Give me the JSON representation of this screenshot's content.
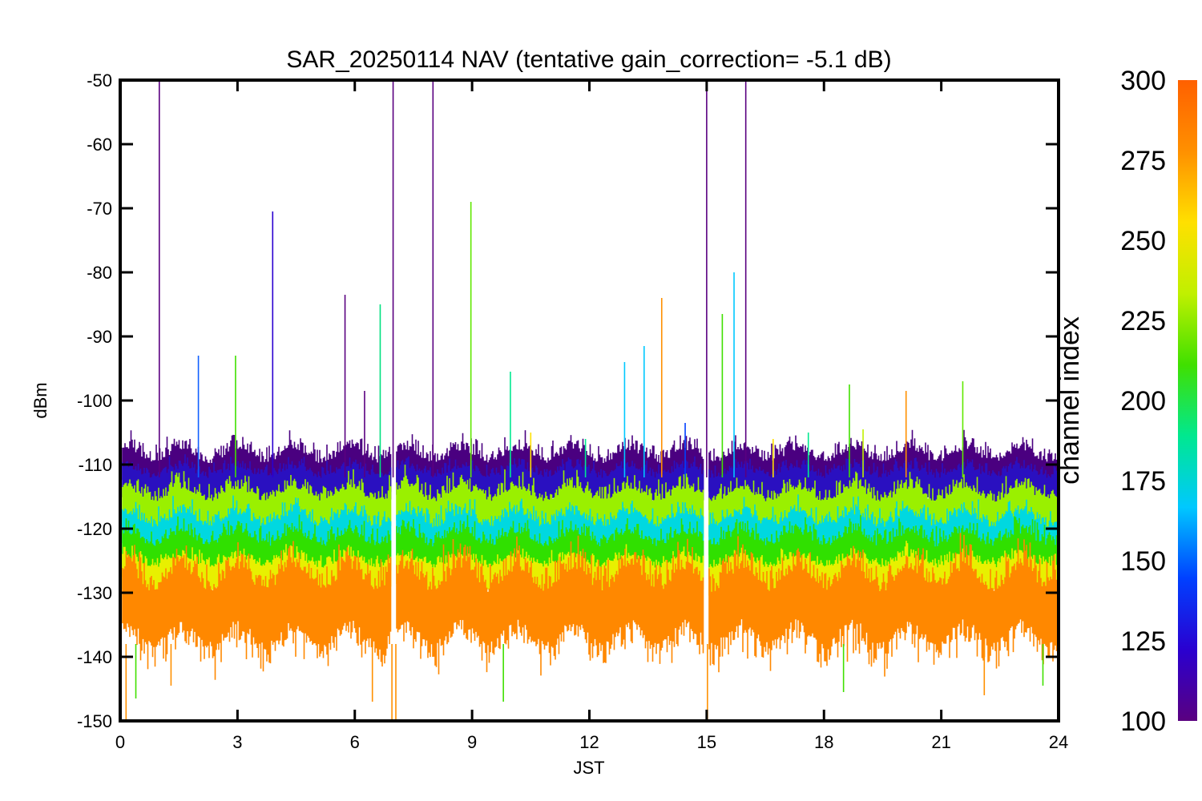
{
  "chart_data": {
    "type": "line",
    "title": "SAR_20250114 NAV (tentative gain_correction= -5.1 dB)",
    "xlabel": "JST",
    "ylabel": "dBm",
    "xlim": [
      0,
      24
    ],
    "ylim": [
      -150,
      -50
    ],
    "x_ticks": [
      "0",
      "3",
      "6",
      "9",
      "12",
      "15",
      "18",
      "21",
      "24"
    ],
    "y_ticks": [
      "-50",
      "-60",
      "-70",
      "-80",
      "-90",
      "-100",
      "-110",
      "-120",
      "-130",
      "-140",
      "-150"
    ],
    "grid": false,
    "colorbar": {
      "label": "channel index",
      "range": [
        100,
        300
      ],
      "ticks": [
        "300",
        "275",
        "250",
        "225",
        "200",
        "175",
        "150",
        "125",
        "100"
      ],
      "colormap": [
        "#5a0080",
        "#2a00d0",
        "#0040ff",
        "#00c8ff",
        "#00e890",
        "#40e000",
        "#c0f000",
        "#ffe000",
        "#ff9000",
        "#ff6000"
      ]
    },
    "bands": [
      {
        "channel_index": 105,
        "color": "#4a0080",
        "center_dbm": -111,
        "spread_dbm": 4
      },
      {
        "channel_index": 135,
        "color": "#2a10c0",
        "center_dbm": -113,
        "spread_dbm": 3
      },
      {
        "channel_index": 260,
        "color": "#9af000",
        "center_dbm": -117,
        "spread_dbm": 4
      },
      {
        "channel_index": 185,
        "color": "#00d8e0",
        "center_dbm": -121,
        "spread_dbm": 4
      },
      {
        "channel_index": 235,
        "color": "#30e000",
        "center_dbm": -124,
        "spread_dbm": 4
      },
      {
        "channel_index": 270,
        "color": "#e8f000",
        "center_dbm": -127,
        "spread_dbm": 3
      },
      {
        "channel_index": 295,
        "color": "#ff8800",
        "center_dbm": -132,
        "spread_dbm": 7
      }
    ],
    "gaps_jst": [
      7.0,
      15.0
    ],
    "spikes": [
      {
        "x": 1.0,
        "y": -50,
        "color": "#5a0080"
      },
      {
        "x": 2.0,
        "y": -93,
        "color": "#1060ff"
      },
      {
        "x": 2.95,
        "y": -93,
        "color": "#40e000"
      },
      {
        "x": 3.9,
        "y": -70.5,
        "color": "#2a00d0"
      },
      {
        "x": 5.75,
        "y": -83.5,
        "color": "#5a0080"
      },
      {
        "x": 6.25,
        "y": -98.5,
        "color": "#5a0080"
      },
      {
        "x": 6.65,
        "y": -85,
        "color": "#00e080"
      },
      {
        "x": 6.98,
        "y": -50,
        "color": "#5a0080"
      },
      {
        "x": 8.0,
        "y": -50,
        "color": "#5a0080"
      },
      {
        "x": 8.97,
        "y": -69,
        "color": "#60e800"
      },
      {
        "x": 9.98,
        "y": -95.5,
        "color": "#00e890"
      },
      {
        "x": 10.5,
        "y": -105,
        "color": "#ffe000"
      },
      {
        "x": 11.9,
        "y": -106,
        "color": "#00e890"
      },
      {
        "x": 12.9,
        "y": -94,
        "color": "#00c8ff"
      },
      {
        "x": 13.4,
        "y": -91.5,
        "color": "#00c8ff"
      },
      {
        "x": 13.85,
        "y": -84,
        "color": "#ff9000"
      },
      {
        "x": 14.45,
        "y": -103.5,
        "color": "#0040ff"
      },
      {
        "x": 15.0,
        "y": -50,
        "color": "#5a0080"
      },
      {
        "x": 15.4,
        "y": -86.5,
        "color": "#40e000"
      },
      {
        "x": 15.7,
        "y": -80,
        "color": "#00c8ff"
      },
      {
        "x": 16.0,
        "y": -50,
        "color": "#5a0080"
      },
      {
        "x": 16.7,
        "y": -106,
        "color": "#ffe000"
      },
      {
        "x": 17.6,
        "y": -105,
        "color": "#00e890"
      },
      {
        "x": 18.65,
        "y": -97.5,
        "color": "#40e000"
      },
      {
        "x": 19.0,
        "y": -104.5,
        "color": "#c0f000"
      },
      {
        "x": 20.1,
        "y": -98.5,
        "color": "#ff9000"
      },
      {
        "x": 21.55,
        "y": -97,
        "color": "#60e800"
      }
    ],
    "downspikes": [
      {
        "x": 0.15,
        "y": -150,
        "color": "#ff9000"
      },
      {
        "x": 6.95,
        "y": -150,
        "color": "#ff9000"
      },
      {
        "x": 7.05,
        "y": -150,
        "color": "#ff9000"
      },
      {
        "x": 15.02,
        "y": -150,
        "color": "#ff9000"
      },
      {
        "x": 9.8,
        "y": -147,
        "color": "#40e000"
      },
      {
        "x": 6.45,
        "y": -147,
        "color": "#ff9000"
      },
      {
        "x": 0.4,
        "y": -146.5,
        "color": "#40e000"
      },
      {
        "x": 22.1,
        "y": -146,
        "color": "#ff9000"
      },
      {
        "x": 18.5,
        "y": -145.5,
        "color": "#40e000"
      },
      {
        "x": 23.6,
        "y": -144.5,
        "color": "#40e000"
      },
      {
        "x": 1.3,
        "y": -144.5,
        "color": "#ff9000"
      }
    ]
  }
}
